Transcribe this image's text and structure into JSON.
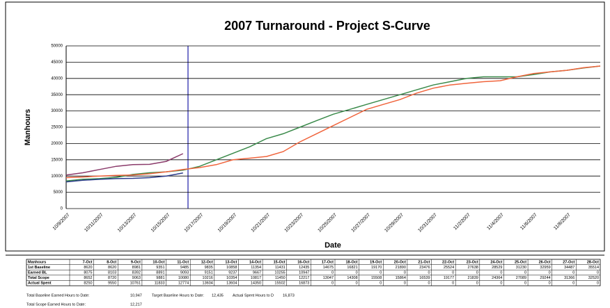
{
  "chart_data": {
    "type": "line",
    "title": "2007 Turnaround - Project S-Curve",
    "y_label": "Manhours",
    "x_label": "Date",
    "categories": [
      "10/9/2007",
      null,
      "10/11/2007",
      null,
      "10/13/2007",
      null,
      "10/15/2007",
      null,
      "10/17/2007",
      null,
      "10/19/2007",
      null,
      "10/21/2007",
      null,
      "10/23/2007",
      null,
      "10/25/2007",
      null,
      "10/27/2007",
      null,
      "10/29/2007",
      null,
      "10/31/2007",
      null,
      "11/2/2007",
      null,
      "11/4/2007",
      null,
      "11/6/2007",
      null,
      "11/8/2007",
      null,
      null
    ],
    "series": [
      {
        "color": "#3a8a4a",
        "values": [
          8500,
          9000,
          9200,
          9600,
          10500,
          11000,
          11300,
          11800,
          13000,
          15000,
          17000,
          19000,
          21500,
          23000,
          25000,
          27000,
          29000,
          30500,
          32000,
          33500,
          35000,
          36500,
          38000,
          39000,
          40000,
          40500,
          40500,
          40500,
          41200,
          42000,
          42500,
          43200,
          43800
        ]
      },
      {
        "color": "#f0643c",
        "values": [
          9500,
          9700,
          10000,
          10200,
          10300,
          10700,
          11300,
          12000,
          12600,
          13500,
          15000,
          15500,
          16000,
          17500,
          20500,
          23000,
          25500,
          28000,
          30500,
          32000,
          33500,
          35500,
          37000,
          38000,
          38500,
          39000,
          39300,
          40500,
          41500,
          42000,
          42500,
          43300,
          43800
        ]
      },
      {
        "color": "#8a3a6a",
        "values": [
          10300,
          11000,
          12000,
          13000,
          13500,
          13600,
          14500,
          16873,
          null,
          null,
          null,
          null,
          null,
          null,
          null,
          null,
          null,
          null,
          null,
          null,
          null,
          null,
          null,
          null,
          null,
          null,
          null,
          null,
          null,
          null,
          null,
          null,
          null
        ]
      },
      {
        "color": "#2a3a8a",
        "values": [
          8200,
          8700,
          9000,
          9200,
          9300,
          9500,
          10000,
          10947,
          null,
          null,
          null,
          null,
          null,
          null,
          null,
          null,
          null,
          null,
          null,
          null,
          null,
          null,
          null,
          null,
          null,
          null,
          null,
          null,
          null,
          null,
          null,
          null,
          null
        ]
      }
    ],
    "ylim": [
      0,
      50000
    ],
    "yticks": [
      0,
      5000,
      10000,
      15000,
      20000,
      25000,
      30000,
      35000,
      40000,
      45000,
      50000
    ],
    "grid": true
  },
  "table": {
    "header": [
      "Manhours",
      "7-Oct",
      "8-Oct",
      "9-Oct",
      "10-Oct",
      "11-Oct",
      "12-Oct",
      "13-Oct",
      "14-Oct",
      "15-Oct",
      "16-Oct",
      "17-Oct",
      "18-Oct",
      "19-Oct",
      "20-Oct",
      "21-Oct",
      "22-Oct",
      "23-Oct",
      "24-Oct",
      "25-Oct",
      "26-Oct",
      "27-Oct",
      "28-Oct"
    ],
    "rows": [
      [
        "1st Baseline",
        "8620",
        "8620",
        "8981",
        "9351",
        "9485",
        "9835",
        "10858",
        "11354",
        "11431",
        "12435",
        "14675",
        "16821",
        "19170",
        "21890",
        "23476",
        "25524",
        "27638",
        "28529",
        "31230",
        "32959",
        "34487",
        "35514"
      ],
      [
        "Earned BL",
        "8075",
        "8103",
        "8392",
        "8891",
        "9093",
        "9151",
        "9237",
        "9667",
        "10255",
        "10947",
        "0",
        "0",
        "0",
        "0",
        "0",
        "0",
        "0",
        "0",
        "0",
        "0",
        "0",
        "0"
      ],
      [
        "Total Scope",
        "8652",
        "8720",
        "9063",
        "9881",
        "10080",
        "10216",
        "10354",
        "10817",
        "11450",
        "12217",
        "13047",
        "14308",
        "15508",
        "15864",
        "16539",
        "19177",
        "21839",
        "24364",
        "27089",
        "29244",
        "31366",
        "32520"
      ],
      [
        "Actual Spent",
        "8250",
        "9550",
        "10761",
        "11833",
        "12774",
        "13604",
        "13604",
        "14350",
        "15502",
        "16873",
        "0",
        "0",
        "0",
        "0",
        "0",
        "0",
        "0",
        "0",
        "0",
        "0",
        "0",
        "0"
      ]
    ]
  },
  "summary": [
    [
      "Total Baseline Earned Hours to Date:",
      "10,947",
      "Target Baseline Hours to Date:",
      "12,435",
      "Actual Spent Hours to D",
      "16,873"
    ],
    [
      "Total Scope Earned Hours to Date:",
      "12,217"
    ]
  ]
}
